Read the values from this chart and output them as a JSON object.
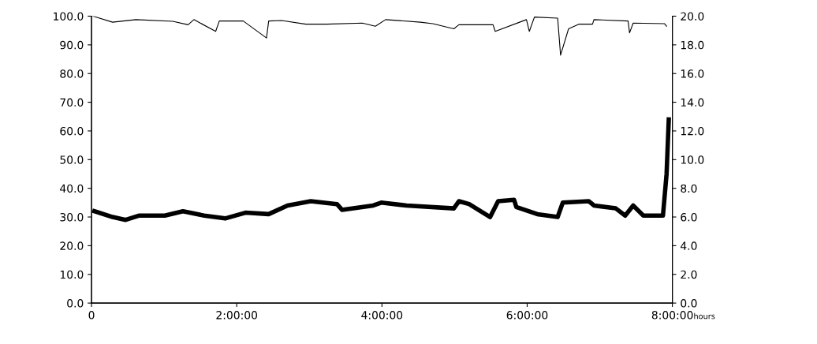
{
  "chart_data": {
    "type": "line",
    "xlabel": "hours",
    "xlim": [
      0,
      8
    ],
    "xticks": [
      {
        "value": 0,
        "label": "0"
      },
      {
        "value": 2,
        "label": "2:00:00"
      },
      {
        "value": 4,
        "label": "4:00:00"
      },
      {
        "value": 6,
        "label": "6:00:00"
      },
      {
        "value": 8,
        "label": "8:00:00"
      }
    ],
    "ylim": [
      0,
      100
    ],
    "yticks": [
      {
        "value": 0,
        "label": "0.0"
      },
      {
        "value": 10,
        "label": "10.0"
      },
      {
        "value": 20,
        "label": "20.0"
      },
      {
        "value": 30,
        "label": "30.0"
      },
      {
        "value": 40,
        "label": "40.0"
      },
      {
        "value": 50,
        "label": "50.0"
      },
      {
        "value": 60,
        "label": "60.0"
      },
      {
        "value": 70,
        "label": "70.0"
      },
      {
        "value": 80,
        "label": "80.0"
      },
      {
        "value": 90,
        "label": "90.0"
      },
      {
        "value": 100,
        "label": "100.0"
      }
    ],
    "y2lim": [
      0,
      20
    ],
    "y2ticks": [
      {
        "value": 0,
        "label": "0.0"
      },
      {
        "value": 2,
        "label": "2.0"
      },
      {
        "value": 4,
        "label": "4.0"
      },
      {
        "value": 6,
        "label": "6.0"
      },
      {
        "value": 8,
        "label": "8.0"
      },
      {
        "value": 10,
        "label": "10.0"
      },
      {
        "value": 12,
        "label": "12.0"
      },
      {
        "value": 14,
        "label": "14.0"
      },
      {
        "value": 16,
        "label": "16.0"
      },
      {
        "value": 18,
        "label": "18.0"
      },
      {
        "value": 20,
        "label": "20.0"
      }
    ],
    "series": [
      {
        "color": "#000000",
        "line_style": "solid",
        "x": [
          0.02,
          0.29,
          0.61,
          1.12,
          1.33,
          1.41,
          1.71,
          1.76,
          2.09,
          2.41,
          2.44,
          2.62,
          2.95,
          3.24,
          3.73,
          3.91,
          4.05,
          4.53,
          4.7,
          4.99,
          5.06,
          5.53,
          5.56,
          5.99,
          6.03,
          6.1,
          6.42,
          6.46,
          6.57,
          6.71,
          6.9,
          6.92,
          7.39,
          7.41,
          7.46,
          7.89,
          7.92
        ],
        "values": [
          100.0,
          97.9,
          98.8,
          98.2,
          97.0,
          98.8,
          94.7,
          98.3,
          98.3,
          92.4,
          98.3,
          98.5,
          97.2,
          97.2,
          97.6,
          96.5,
          98.8,
          97.9,
          97.4,
          95.6,
          97.0,
          97.0,
          94.7,
          98.8,
          94.7,
          99.7,
          99.3,
          86.4,
          95.6,
          97.2,
          97.2,
          98.8,
          98.3,
          94.2,
          97.6,
          97.4,
          96.5
        ]
      },
      {
        "color": "#000000",
        "line_style": "solid",
        "axis": "y2",
        "x": [
          0.04,
          0.29,
          0.47,
          0.66,
          1.01,
          1.26,
          1.55,
          1.84,
          2.12,
          2.44,
          2.7,
          3.02,
          3.38,
          3.45,
          3.88,
          3.99,
          4.34,
          4.99,
          5.06,
          5.2,
          5.49,
          5.6,
          5.82,
          5.85,
          6.14,
          6.42,
          6.49,
          6.85,
          6.92,
          7.22,
          7.35,
          7.46,
          7.6,
          7.87,
          7.92,
          7.95
        ],
        "values": [
          6.4,
          6.0,
          5.8,
          6.1,
          6.1,
          6.4,
          6.1,
          5.9,
          6.3,
          6.2,
          6.8,
          7.1,
          6.9,
          6.5,
          6.8,
          7.0,
          6.8,
          6.6,
          7.1,
          6.9,
          6.0,
          7.1,
          7.2,
          6.7,
          6.2,
          6.0,
          7.0,
          7.1,
          6.8,
          6.6,
          6.1,
          6.8,
          6.1,
          6.1,
          9.0,
          12.8
        ]
      }
    ]
  }
}
